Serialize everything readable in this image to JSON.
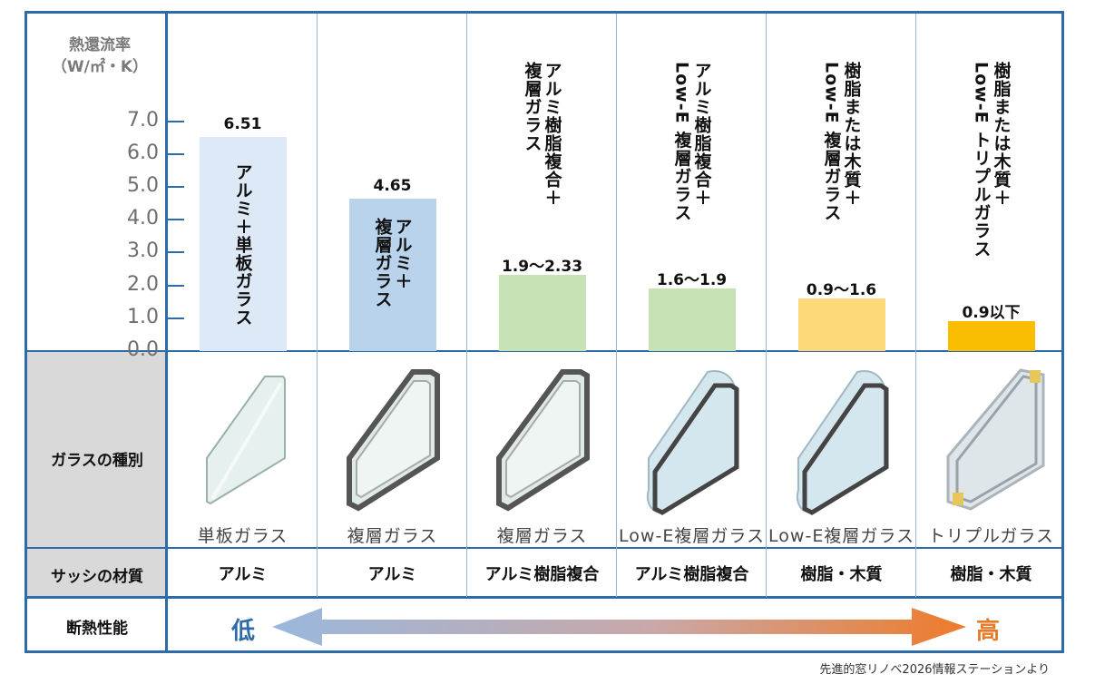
{
  "chart_data": {
    "type": "bar",
    "ylabel_line1": "熱還流率",
    "ylabel_line2": "（W/㎡・K）",
    "ylim": [
      0,
      7
    ],
    "yticks": [
      "7.0",
      "6.0",
      "5.0",
      "4.0",
      "3.0",
      "2.0",
      "1.0",
      "0.0"
    ],
    "yticks_values": [
      7,
      6,
      5,
      4,
      3,
      2,
      1,
      0
    ],
    "columns": [
      {
        "value_label": "6.51",
        "value": 6.51,
        "description": "アルミ＋単板ガラス",
        "glass": "単板ガラス",
        "sash": "アルミ",
        "color": "#dde9f6"
      },
      {
        "value_label": "4.65",
        "value": 4.65,
        "description": "アルミ＋\n複層ガラス",
        "glass": "複層ガラス",
        "sash": "アルミ",
        "color": "#b9d3ec"
      },
      {
        "value_label": "1.9～2.33",
        "value": 2.33,
        "description": "アルミ樹脂複合＋\n複層ガラス",
        "glass": "複層ガラス",
        "sash": "アルミ樹脂複合",
        "color": "#c7e2b4"
      },
      {
        "value_label": "1.6～1.9",
        "value": 1.9,
        "description": "アルミ樹脂複合＋\nLow-E 複層ガラス",
        "glass": "Low-E複層ガラス",
        "sash": "アルミ樹脂複合",
        "color": "#c7e2b4"
      },
      {
        "value_label": "0.9～1.6",
        "value": 1.6,
        "description": "樹脂または木質＋\nLow-E 複層ガラス",
        "glass": "Low-E複層ガラス",
        "sash": "樹脂・木質",
        "color": "#fdd97a"
      },
      {
        "value_label": "0.9以下",
        "value": 0.9,
        "description": "樹脂または木質＋\nLow-E トリプルガラス",
        "glass": "トリプルガラス",
        "sash": "樹脂・木質",
        "color": "#fbbd00"
      }
    ]
  },
  "rows": {
    "glass_type": "ガラスの種別",
    "sash_material": "サッシの材質",
    "insulation": "断熱性能"
  },
  "insulation": {
    "low": "低",
    "high": "高",
    "low_color": "#2e6ca9",
    "high_color": "#e57a2b"
  },
  "source": "先進的窓リノベ2026情報ステーションより"
}
